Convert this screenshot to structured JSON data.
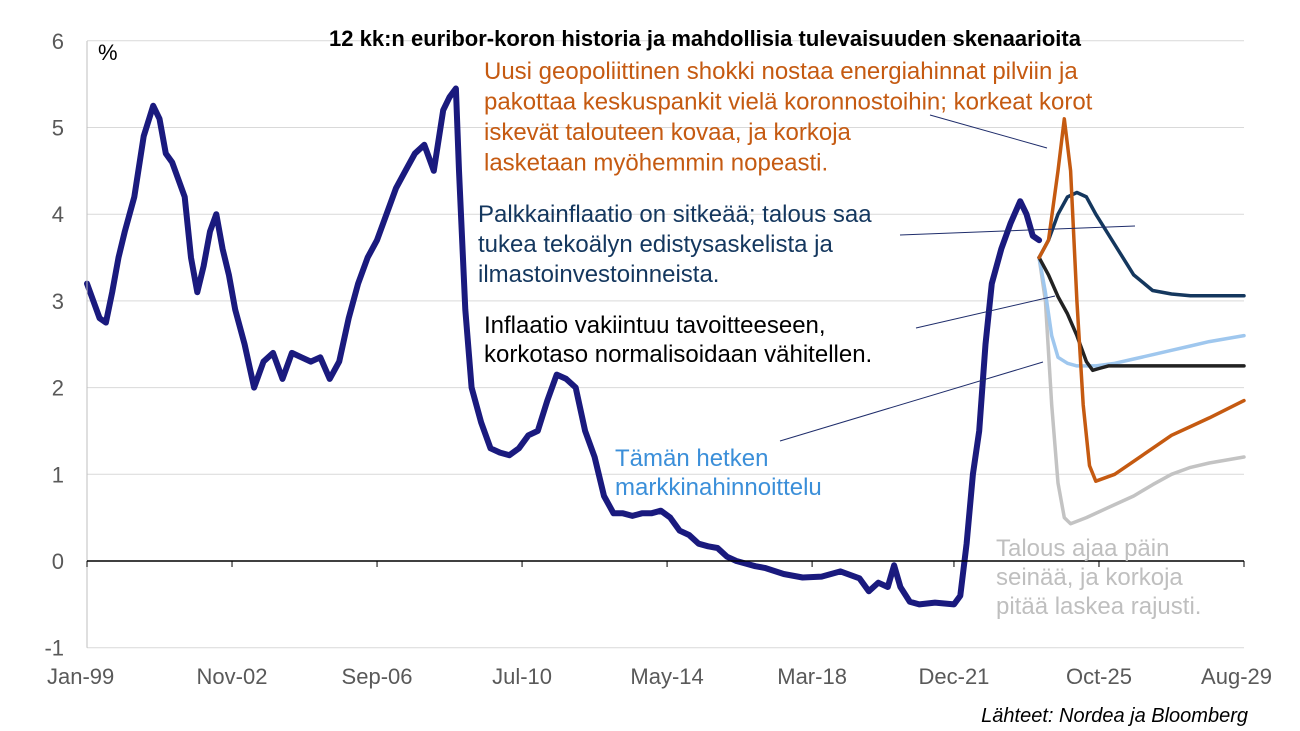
{
  "chart_data": {
    "type": "line",
    "title": "12 kk:n euribor-koron historia ja mahdollisia tulevaisuuden skenaarioita",
    "unit_label": "%",
    "source": "Lähteet: Nordea ja Bloomberg",
    "ylim": [
      -1,
      6
    ],
    "yticks": [
      "-1",
      "0",
      "1",
      "2",
      "3",
      "4",
      "5",
      "6"
    ],
    "xlim": [
      "1999-01",
      "2029-08"
    ],
    "xticks": [
      {
        "label": "Jan-99",
        "date": "1999-01"
      },
      {
        "label": "Nov-02",
        "date": "2002-11"
      },
      {
        "label": "Sep-06",
        "date": "2006-09"
      },
      {
        "label": "Jul-10",
        "date": "2010-07"
      },
      {
        "label": "May-14",
        "date": "2014-05"
      },
      {
        "label": "Mar-18",
        "date": "2018-03"
      },
      {
        "label": "Dec-21",
        "date": "2021-12"
      },
      {
        "label": "Oct-25",
        "date": "2025-10"
      },
      {
        "label": "Aug-29",
        "date": "2029-08"
      }
    ],
    "grid": true,
    "series": [
      {
        "role": "history",
        "color": "#1a1a7e",
        "points": [
          [
            "1999-01",
            3.2
          ],
          [
            "1999-03",
            3.0
          ],
          [
            "1999-05",
            2.8
          ],
          [
            "1999-07",
            2.75
          ],
          [
            "1999-09",
            3.1
          ],
          [
            "1999-11",
            3.5
          ],
          [
            "2000-01",
            3.8
          ],
          [
            "2000-04",
            4.2
          ],
          [
            "2000-07",
            4.9
          ],
          [
            "2000-10",
            5.25
          ],
          [
            "2000-12",
            5.1
          ],
          [
            "2001-02",
            4.7
          ],
          [
            "2001-04",
            4.6
          ],
          [
            "2001-06",
            4.4
          ],
          [
            "2001-08",
            4.2
          ],
          [
            "2001-10",
            3.5
          ],
          [
            "2001-12",
            3.1
          ],
          [
            "2002-02",
            3.4
          ],
          [
            "2002-04",
            3.8
          ],
          [
            "2002-06",
            4.0
          ],
          [
            "2002-08",
            3.6
          ],
          [
            "2002-10",
            3.3
          ],
          [
            "2002-12",
            2.9
          ],
          [
            "2003-03",
            2.5
          ],
          [
            "2003-06",
            2.0
          ],
          [
            "2003-09",
            2.3
          ],
          [
            "2003-12",
            2.4
          ],
          [
            "2004-03",
            2.1
          ],
          [
            "2004-06",
            2.4
          ],
          [
            "2004-09",
            2.35
          ],
          [
            "2004-12",
            2.3
          ],
          [
            "2005-03",
            2.35
          ],
          [
            "2005-06",
            2.1
          ],
          [
            "2005-09",
            2.3
          ],
          [
            "2005-12",
            2.8
          ],
          [
            "2006-03",
            3.2
          ],
          [
            "2006-06",
            3.5
          ],
          [
            "2006-09",
            3.7
          ],
          [
            "2006-12",
            4.0
          ],
          [
            "2007-03",
            4.3
          ],
          [
            "2007-06",
            4.5
          ],
          [
            "2007-09",
            4.7
          ],
          [
            "2007-12",
            4.8
          ],
          [
            "2008-03",
            4.5
          ],
          [
            "2008-06",
            5.2
          ],
          [
            "2008-08",
            5.35
          ],
          [
            "2008-10",
            5.45
          ],
          [
            "2008-11",
            4.5
          ],
          [
            "2009-01",
            2.9
          ],
          [
            "2009-03",
            2.0
          ],
          [
            "2009-06",
            1.6
          ],
          [
            "2009-09",
            1.3
          ],
          [
            "2009-12",
            1.25
          ],
          [
            "2010-03",
            1.22
          ],
          [
            "2010-06",
            1.3
          ],
          [
            "2010-09",
            1.45
          ],
          [
            "2010-12",
            1.5
          ],
          [
            "2011-03",
            1.85
          ],
          [
            "2011-06",
            2.15
          ],
          [
            "2011-09",
            2.1
          ],
          [
            "2011-12",
            2.0
          ],
          [
            "2012-03",
            1.5
          ],
          [
            "2012-06",
            1.2
          ],
          [
            "2012-09",
            0.75
          ],
          [
            "2012-12",
            0.55
          ],
          [
            "2013-03",
            0.55
          ],
          [
            "2013-06",
            0.52
          ],
          [
            "2013-09",
            0.55
          ],
          [
            "2013-12",
            0.55
          ],
          [
            "2014-03",
            0.58
          ],
          [
            "2014-06",
            0.5
          ],
          [
            "2014-09",
            0.35
          ],
          [
            "2014-12",
            0.3
          ],
          [
            "2015-03",
            0.2
          ],
          [
            "2015-06",
            0.17
          ],
          [
            "2015-09",
            0.15
          ],
          [
            "2015-12",
            0.05
          ],
          [
            "2016-03",
            -0.0
          ],
          [
            "2016-06",
            -0.03
          ],
          [
            "2016-09",
            -0.06
          ],
          [
            "2016-12",
            -0.08
          ],
          [
            "2017-06",
            -0.15
          ],
          [
            "2017-12",
            -0.19
          ],
          [
            "2018-06",
            -0.18
          ],
          [
            "2018-12",
            -0.12
          ],
          [
            "2019-06",
            -0.2
          ],
          [
            "2019-09",
            -0.35
          ],
          [
            "2019-12",
            -0.25
          ],
          [
            "2020-03",
            -0.3
          ],
          [
            "2020-05",
            -0.05
          ],
          [
            "2020-07",
            -0.3
          ],
          [
            "2020-10",
            -0.47
          ],
          [
            "2021-01",
            -0.5
          ],
          [
            "2021-06",
            -0.48
          ],
          [
            "2021-12",
            -0.5
          ],
          [
            "2022-02",
            -0.4
          ],
          [
            "2022-04",
            0.2
          ],
          [
            "2022-06",
            1.0
          ],
          [
            "2022-08",
            1.5
          ],
          [
            "2022-10",
            2.5
          ],
          [
            "2022-12",
            3.2
          ],
          [
            "2023-03",
            3.6
          ],
          [
            "2023-06",
            3.9
          ],
          [
            "2023-09",
            4.15
          ],
          [
            "2023-11",
            4.0
          ],
          [
            "2024-01",
            3.75
          ],
          [
            "2024-03",
            3.7
          ]
        ]
      },
      {
        "name": "Uusi geopoliittinen shokki",
        "color": "#c55a11",
        "points": [
          [
            "2024-03",
            3.5
          ],
          [
            "2024-06",
            3.7
          ],
          [
            "2024-09",
            4.5
          ],
          [
            "2024-11",
            5.1
          ],
          [
            "2025-01",
            4.5
          ],
          [
            "2025-03",
            3.0
          ],
          [
            "2025-05",
            1.8
          ],
          [
            "2025-07",
            1.1
          ],
          [
            "2025-09",
            0.92
          ],
          [
            "2026-03",
            1.0
          ],
          [
            "2026-09",
            1.15
          ],
          [
            "2027-03",
            1.3
          ],
          [
            "2027-09",
            1.45
          ],
          [
            "2028-03",
            1.55
          ],
          [
            "2028-09",
            1.65
          ],
          [
            "2029-08",
            1.85
          ]
        ]
      },
      {
        "name": "Palkkainflaatio on sitkeää",
        "color": "#14375e",
        "points": [
          [
            "2024-03",
            3.5
          ],
          [
            "2024-06",
            3.7
          ],
          [
            "2024-09",
            4.0
          ],
          [
            "2024-12",
            4.2
          ],
          [
            "2025-03",
            4.25
          ],
          [
            "2025-06",
            4.2
          ],
          [
            "2025-09",
            4.0
          ],
          [
            "2026-03",
            3.65
          ],
          [
            "2026-09",
            3.3
          ],
          [
            "2027-03",
            3.12
          ],
          [
            "2027-09",
            3.08
          ],
          [
            "2028-03",
            3.06
          ],
          [
            "2029-08",
            3.06
          ]
        ]
      },
      {
        "name": "Inflaatio vakiintuu tavoitteeseen",
        "color": "#222222",
        "points": [
          [
            "2024-03",
            3.5
          ],
          [
            "2024-06",
            3.3
          ],
          [
            "2024-09",
            3.05
          ],
          [
            "2024-12",
            2.85
          ],
          [
            "2025-03",
            2.6
          ],
          [
            "2025-06",
            2.3
          ],
          [
            "2025-08",
            2.2
          ],
          [
            "2025-10",
            2.22
          ],
          [
            "2026-01",
            2.25
          ],
          [
            "2029-08",
            2.25
          ]
        ]
      },
      {
        "name": "Tämän hetken markkinahinnoittelu",
        "color": "#9fc7ee",
        "points": [
          [
            "2024-03",
            3.5
          ],
          [
            "2024-05",
            3.1
          ],
          [
            "2024-07",
            2.6
          ],
          [
            "2024-09",
            2.35
          ],
          [
            "2024-12",
            2.28
          ],
          [
            "2025-03",
            2.25
          ],
          [
            "2025-09",
            2.25
          ],
          [
            "2026-03",
            2.28
          ],
          [
            "2026-09",
            2.33
          ],
          [
            "2027-03",
            2.38
          ],
          [
            "2027-09",
            2.43
          ],
          [
            "2028-03",
            2.48
          ],
          [
            "2028-09",
            2.53
          ],
          [
            "2029-08",
            2.6
          ]
        ]
      },
      {
        "name": "Talous ajaa päin seinää",
        "color": "#c3c3c3",
        "points": [
          [
            "2024-03",
            3.5
          ],
          [
            "2024-05",
            3.0
          ],
          [
            "2024-07",
            1.8
          ],
          [
            "2024-09",
            0.9
          ],
          [
            "2024-11",
            0.5
          ],
          [
            "2025-01",
            0.43
          ],
          [
            "2025-06",
            0.5
          ],
          [
            "2026-03",
            0.65
          ],
          [
            "2026-09",
            0.75
          ],
          [
            "2027-03",
            0.88
          ],
          [
            "2027-09",
            1.0
          ],
          [
            "2028-03",
            1.08
          ],
          [
            "2028-09",
            1.13
          ],
          [
            "2029-08",
            1.2
          ]
        ]
      }
    ]
  },
  "annotations": {
    "geopolitical": {
      "lines": [
        "Uusi geopoliittinen shokki nostaa energiahinnat pilviin ja",
        "pakottaa keskuspankit vielä koronnostoihin; korkeat korot",
        "iskevät talouteen kovaa, ja korkoja",
        "lasketaan myöhemmin nopeasti."
      ],
      "color": "#c55a11"
    },
    "wage": {
      "lines": [
        "Palkkainflaatio on sitkeää; talous saa",
        "tukea tekoälyn edistysaskelista ja",
        "ilmastoinvestoinneista."
      ],
      "color": "#14375e"
    },
    "inflation": {
      "lines": [
        "Inflaatio vakiintuu tavoitteeseen,",
        "korkotaso normalisoidaan vähitellen."
      ],
      "color": "#000000"
    },
    "market": {
      "lines": [
        "Tämän hetken",
        "markkinahinnoittelu"
      ],
      "color": "#3b8fd9"
    },
    "crash": {
      "lines": [
        "Talous ajaa päin",
        "seinää, ja korkoja",
        "pitää laskea rajusti."
      ],
      "color": "#bfbfbf"
    }
  }
}
